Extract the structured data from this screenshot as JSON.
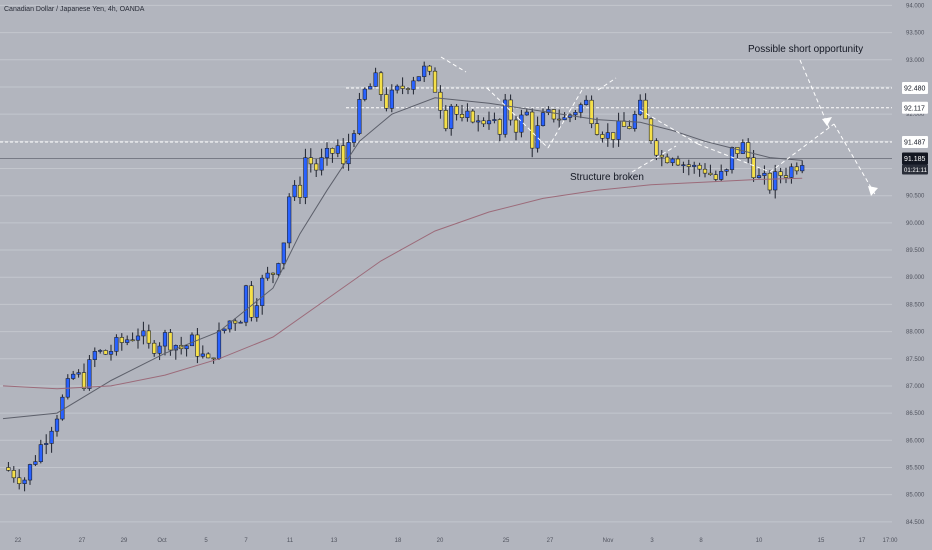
{
  "symbol_title": "Canadian Dollar / Japanese Yen, 4h, OANDA",
  "colors": {
    "background": "#b2b5be",
    "grid": "#c3c6cd",
    "bull_candle": "#2962ff",
    "bear_candle": "#f5e04a",
    "wick": "#1e222d",
    "ma_fast": "#5d606b",
    "ma_slow": "#9c6b7a",
    "dashed": "#ffffff",
    "last_price_bg": "#131722"
  },
  "annotations": {
    "short_opportunity": "Possible short opportunity",
    "structure_broken": "Structure broken"
  },
  "price_tags": [
    {
      "label": "92.480",
      "price": 92.48,
      "style": "light"
    },
    {
      "label": "92.117",
      "price": 92.117,
      "style": "light"
    },
    {
      "label": "91.487",
      "price": 91.487,
      "style": "light"
    },
    {
      "label": "91.185",
      "price": 91.185,
      "style": "dark"
    }
  ],
  "countdown": "01:21:11",
  "chart_data": {
    "type": "candlestick",
    "title": "Canadian Dollar / Japanese Yen, 4h, OANDA",
    "y_ticks": [
      "94.000",
      "93.500",
      "93.000",
      "92.500",
      "92.000",
      "91.500",
      "91.000",
      "90.500",
      "90.000",
      "89.500",
      "89.000",
      "88.500",
      "88.000",
      "87.500",
      "87.000",
      "86.500",
      "86.000",
      "85.500",
      "85.000",
      "84.500"
    ],
    "x_ticks": [
      "22",
      "27",
      "29",
      "Oct",
      "5",
      "7",
      "11",
      "13",
      "18",
      "20",
      "25",
      "27",
      "Nov",
      "3",
      "8",
      "10",
      "15",
      "17",
      "17:00"
    ],
    "ylim": [
      84.35,
      94.1
    ],
    "grid": true,
    "horizontal_levels": [
      92.48,
      92.117,
      91.487,
      91.185
    ],
    "series": [
      {
        "kind": "close_path",
        "points": [
          [
            0,
            85.5
          ],
          [
            4,
            85.3
          ],
          [
            7,
            85.9
          ],
          [
            10,
            86.5
          ],
          [
            13,
            87.2
          ],
          [
            15,
            87.1
          ],
          [
            17,
            87.6
          ],
          [
            19,
            87.6
          ],
          [
            22,
            87.8
          ],
          [
            25,
            88.0
          ],
          [
            27,
            87.7
          ],
          [
            30,
            87.9
          ],
          [
            33,
            87.7
          ],
          [
            35,
            87.8
          ],
          [
            38,
            87.4
          ],
          [
            40,
            87.9
          ],
          [
            42,
            88.2
          ],
          [
            44,
            88.3
          ],
          [
            45,
            88.8
          ],
          [
            46,
            88.4
          ],
          [
            48,
            88.9
          ],
          [
            50,
            89.1
          ],
          [
            52,
            89.7
          ],
          [
            53,
            90.5
          ],
          [
            55,
            90.6
          ],
          [
            56,
            91.2
          ],
          [
            58,
            91.0
          ],
          [
            60,
            91.2
          ],
          [
            62,
            91.4
          ],
          [
            63,
            91.0
          ],
          [
            64,
            91.5
          ],
          [
            66,
            92.1
          ],
          [
            67,
            92.4
          ],
          [
            69,
            92.6
          ],
          [
            71,
            92.2
          ],
          [
            72,
            92.3
          ],
          [
            74,
            92.5
          ],
          [
            76,
            92.7
          ],
          [
            78,
            92.8
          ],
          [
            80,
            92.5
          ],
          [
            82,
            91.9
          ],
          [
            83,
            92.2
          ],
          [
            85,
            91.8
          ],
          [
            87,
            92.0
          ],
          [
            88,
            91.8
          ],
          [
            90,
            92.0
          ],
          [
            92,
            91.6
          ],
          [
            93,
            92.1
          ],
          [
            95,
            91.8
          ],
          [
            97,
            92.0
          ],
          [
            98,
            91.5
          ],
          [
            100,
            91.9
          ],
          [
            102,
            92.0
          ],
          [
            104,
            91.9
          ],
          [
            106,
            92.1
          ],
          [
            108,
            92.2
          ],
          [
            110,
            91.8
          ],
          [
            112,
            91.6
          ],
          [
            114,
            91.7
          ],
          [
            116,
            91.8
          ],
          [
            118,
            92.1
          ],
          [
            120,
            91.6
          ],
          [
            122,
            91.2
          ],
          [
            124,
            91.3
          ],
          [
            126,
            91.1
          ],
          [
            128,
            91.0
          ],
          [
            130,
            91.0
          ],
          [
            132,
            90.8
          ],
          [
            134,
            90.9
          ],
          [
            135,
            91.3
          ],
          [
            137,
            91.4
          ],
          [
            138,
            91.2
          ],
          [
            140,
            90.8
          ],
          [
            142,
            90.7
          ],
          [
            144,
            90.9
          ],
          [
            146,
            91.0
          ],
          [
            148,
            91.2
          ]
        ]
      },
      {
        "name": "",
        "kind": "ma_fast",
        "points": [
          [
            0,
            86.4
          ],
          [
            10,
            86.5
          ],
          [
            20,
            87.1
          ],
          [
            30,
            87.6
          ],
          [
            40,
            88.0
          ],
          [
            50,
            88.8
          ],
          [
            55,
            89.8
          ],
          [
            60,
            90.6
          ],
          [
            66,
            91.5
          ],
          [
            72,
            92.0
          ],
          [
            80,
            92.3
          ],
          [
            90,
            92.2
          ],
          [
            100,
            92.05
          ],
          [
            110,
            91.9
          ],
          [
            118,
            91.85
          ],
          [
            124,
            91.7
          ],
          [
            130,
            91.5
          ],
          [
            136,
            91.35
          ],
          [
            142,
            91.2
          ],
          [
            148,
            91.15
          ]
        ]
      },
      {
        "name": "",
        "kind": "ma_slow",
        "points": [
          [
            0,
            87.0
          ],
          [
            10,
            86.95
          ],
          [
            20,
            87.0
          ],
          [
            30,
            87.2
          ],
          [
            40,
            87.5
          ],
          [
            50,
            87.9
          ],
          [
            60,
            88.6
          ],
          [
            70,
            89.3
          ],
          [
            80,
            89.85
          ],
          [
            90,
            90.2
          ],
          [
            100,
            90.45
          ],
          [
            110,
            90.6
          ],
          [
            120,
            90.7
          ],
          [
            130,
            90.75
          ],
          [
            140,
            90.8
          ],
          [
            148,
            90.82
          ]
        ]
      }
    ]
  }
}
